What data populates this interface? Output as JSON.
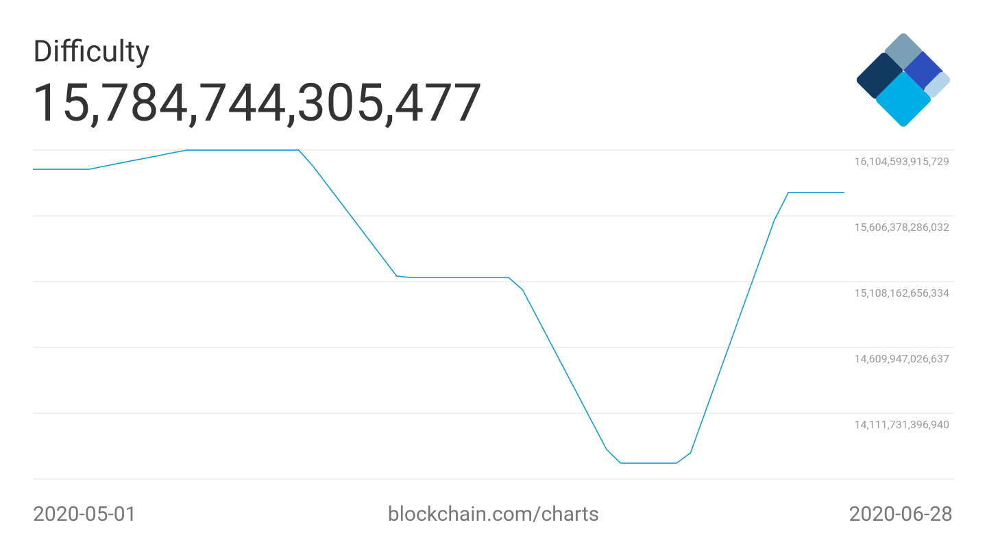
{
  "chart_data": {
    "type": "line",
    "title": "Difficulty",
    "current_value": "15,784,744,305,477",
    "source": "blockchain.com/charts",
    "x": [
      "2020-05-01",
      "2020-05-02",
      "2020-05-03",
      "2020-05-04",
      "2020-05-05",
      "2020-05-06",
      "2020-05-07",
      "2020-05-08",
      "2020-05-09",
      "2020-05-10",
      "2020-05-11",
      "2020-05-12",
      "2020-05-13",
      "2020-05-14",
      "2020-05-15",
      "2020-05-16",
      "2020-05-17",
      "2020-05-18",
      "2020-05-19",
      "2020-05-20",
      "2020-05-21",
      "2020-05-22",
      "2020-05-23",
      "2020-05-24",
      "2020-05-25",
      "2020-05-26",
      "2020-05-27",
      "2020-05-28",
      "2020-05-29",
      "2020-05-30",
      "2020-05-31",
      "2020-06-01",
      "2020-06-02",
      "2020-06-03",
      "2020-06-04",
      "2020-06-05",
      "2020-06-06",
      "2020-06-07",
      "2020-06-08",
      "2020-06-09",
      "2020-06-10",
      "2020-06-11",
      "2020-06-12",
      "2020-06-13",
      "2020-06-14",
      "2020-06-15",
      "2020-06-16",
      "2020-06-17",
      "2020-06-18",
      "2020-06-19",
      "2020-06-20",
      "2020-06-21",
      "2020-06-22",
      "2020-06-23",
      "2020-06-24",
      "2020-06-25",
      "2020-06-26",
      "2020-06-27",
      "2020-06-28"
    ],
    "series": [
      {
        "name": "Difficulty",
        "color": "#129bd7",
        "values": [
          15959000000000,
          15959000000000,
          15959000000000,
          15959000000000,
          15959000000000,
          15980000000000,
          16001000000000,
          16022000000000,
          16042000000000,
          16063000000000,
          16084000000000,
          16104000000000,
          16104000000000,
          16104000000000,
          16104000000000,
          16104000000000,
          16104000000000,
          16104000000000,
          16104000000000,
          16104000000000,
          15985000000000,
          15846000000000,
          15707000000000,
          15568000000000,
          15428000000000,
          15289000000000,
          15150000000000,
          15139000000000,
          15139000000000,
          15139000000000,
          15139000000000,
          15139000000000,
          15139000000000,
          15139000000000,
          15139000000000,
          15046000000000,
          14845000000000,
          14643000000000,
          14441000000000,
          14240000000000,
          14038000000000,
          13837000000000,
          13733000000000,
          13733000000000,
          13733000000000,
          13733000000000,
          13733000000000,
          13811000000000,
          14105000000000,
          14399000000000,
          14693000000000,
          14988000000000,
          15281000000000,
          15576000000000,
          15784000000000,
          15784000000000,
          15784000000000,
          15784000000000,
          15784000000000
        ]
      }
    ],
    "xticks": [
      "2020-05-01",
      "2020-06-28"
    ],
    "ylim": [
      13613515767243,
      16104593915729
    ],
    "yticks": [
      {
        "value": 16104593915729,
        "label": "16,104,593,915,729"
      },
      {
        "value": 15606378286032,
        "label": "15,606,378,286,032"
      },
      {
        "value": 15108162656334,
        "label": "15,108,162,656,334"
      },
      {
        "value": 14609947026637,
        "label": "14,609,947,026,637"
      },
      {
        "value": 14111731396940,
        "label": "14,111,731,396,940"
      }
    ],
    "grid": true
  }
}
